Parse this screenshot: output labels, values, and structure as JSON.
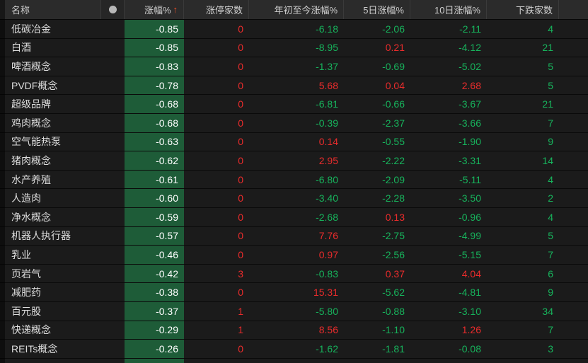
{
  "header": {
    "name_label": "名称",
    "indicator_dot_icon": "circle-dot",
    "change_label": "涨幅%",
    "sort_arrow": "↑",
    "limit_up_label": "涨停家数",
    "ytd_label": "年初至今涨幅%",
    "d5_label": "5日涨幅%",
    "d10_label": "10日涨幅%",
    "decliners_label": "下跌家数"
  },
  "colors": {
    "up_red": "#ea2c2c",
    "down_green": "#17b35c",
    "change_cell_bg": "#1e5c38",
    "sort_arrow_orange": "#f04f28",
    "header_bg": "#2b2b2b",
    "row_bg": "#1b1b1b"
  },
  "rows": [
    {
      "name": "低碳冶金",
      "change": "-0.85",
      "limit_up": "0",
      "ytd": "-6.18",
      "d5": "-2.06",
      "d10": "-2.11",
      "decliners": "4"
    },
    {
      "name": "白酒",
      "change": "-0.85",
      "limit_up": "0",
      "ytd": "-8.95",
      "d5": "0.21",
      "d10": "-4.12",
      "decliners": "21"
    },
    {
      "name": "啤酒概念",
      "change": "-0.83",
      "limit_up": "0",
      "ytd": "-1.37",
      "d5": "-0.69",
      "d10": "-5.02",
      "decliners": "5"
    },
    {
      "name": "PVDF概念",
      "change": "-0.78",
      "limit_up": "0",
      "ytd": "5.68",
      "d5": "0.04",
      "d10": "2.68",
      "decliners": "5"
    },
    {
      "name": "超级品牌",
      "change": "-0.68",
      "limit_up": "0",
      "ytd": "-6.81",
      "d5": "-0.66",
      "d10": "-3.67",
      "decliners": "21"
    },
    {
      "name": "鸡肉概念",
      "change": "-0.68",
      "limit_up": "0",
      "ytd": "-0.39",
      "d5": "-2.37",
      "d10": "-3.66",
      "decliners": "7"
    },
    {
      "name": "空气能热泵",
      "change": "-0.63",
      "limit_up": "0",
      "ytd": "0.14",
      "d5": "-0.55",
      "d10": "-1.90",
      "decliners": "9"
    },
    {
      "name": "猪肉概念",
      "change": "-0.62",
      "limit_up": "0",
      "ytd": "2.95",
      "d5": "-2.22",
      "d10": "-3.31",
      "decliners": "14"
    },
    {
      "name": "水产养殖",
      "change": "-0.61",
      "limit_up": "0",
      "ytd": "-6.80",
      "d5": "-2.09",
      "d10": "-5.11",
      "decliners": "4"
    },
    {
      "name": "人造肉",
      "change": "-0.60",
      "limit_up": "0",
      "ytd": "-3.40",
      "d5": "-2.28",
      "d10": "-3.50",
      "decliners": "2"
    },
    {
      "name": "净水概念",
      "change": "-0.59",
      "limit_up": "0",
      "ytd": "-2.68",
      "d5": "0.13",
      "d10": "-0.96",
      "decliners": "4"
    },
    {
      "name": "机器人执行器",
      "change": "-0.57",
      "limit_up": "0",
      "ytd": "7.76",
      "d5": "-2.75",
      "d10": "-4.99",
      "decliners": "5"
    },
    {
      "name": "乳业",
      "change": "-0.46",
      "limit_up": "0",
      "ytd": "0.97",
      "d5": "-2.56",
      "d10": "-5.15",
      "decliners": "7"
    },
    {
      "name": "页岩气",
      "change": "-0.42",
      "limit_up": "3",
      "ytd": "-0.83",
      "d5": "0.37",
      "d10": "4.04",
      "decliners": "6"
    },
    {
      "name": "减肥药",
      "change": "-0.38",
      "limit_up": "0",
      "ytd": "15.31",
      "d5": "-5.62",
      "d10": "-4.81",
      "decliners": "9"
    },
    {
      "name": "百元股",
      "change": "-0.37",
      "limit_up": "1",
      "ytd": "-5.80",
      "d5": "-0.88",
      "d10": "-3.10",
      "decliners": "34"
    },
    {
      "name": "快递概念",
      "change": "-0.29",
      "limit_up": "1",
      "ytd": "8.56",
      "d5": "-1.10",
      "d10": "1.26",
      "decliners": "7"
    },
    {
      "name": "REITs概念",
      "change": "-0.26",
      "limit_up": "0",
      "ytd": "-1.62",
      "d5": "-1.81",
      "d10": "-0.08",
      "decliners": "3"
    }
  ]
}
